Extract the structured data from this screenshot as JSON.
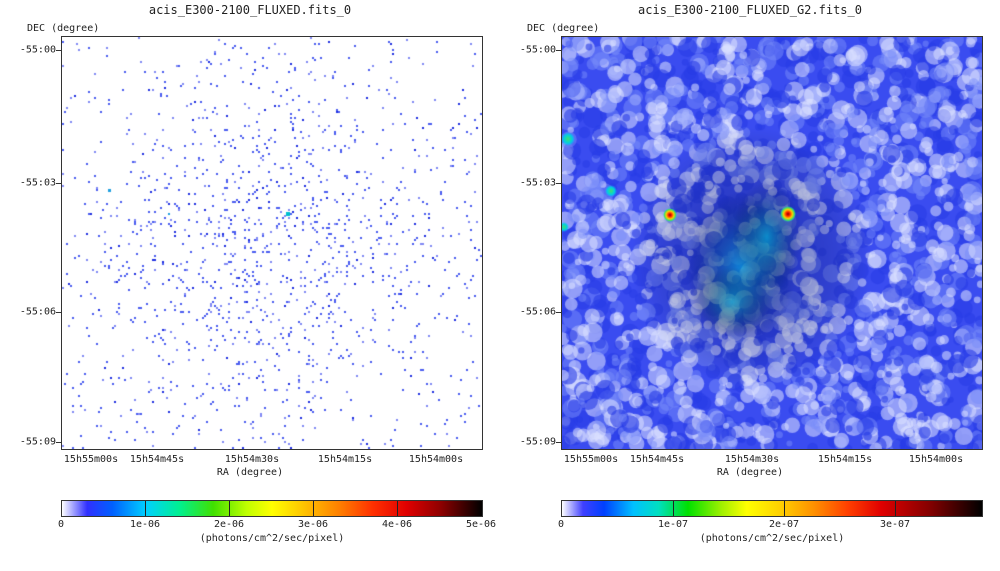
{
  "panels": [
    {
      "title": "acis_E300-2100_FLUXED.fits_0",
      "ylabel": "DEC (degree)",
      "xlabel": "RA (degree)",
      "yticks": [
        "-55:00",
        "-55:03",
        "-55:06",
        "-55:09"
      ],
      "xticks": [
        "15h55m00s",
        "15h54m45s",
        "15h54m30s",
        "15h54m15s",
        "15h54m00s"
      ],
      "colorbar_ticks": [
        "0",
        "1e-06",
        "2e-06",
        "3e-06",
        "4e-06",
        "5e-06"
      ],
      "colorbar_unit": "(photons/cm^2/sec/pixel)",
      "image_style": "sparse-photon-counts"
    },
    {
      "title": "acis_E300-2100_FLUXED_G2.fits_0",
      "ylabel": "DEC (degree)",
      "xlabel": "RA (degree)",
      "yticks": [
        "-55:00",
        "-55:03",
        "-55:06",
        "-55:09"
      ],
      "xticks": [
        "15h55m00s",
        "15h54m45s",
        "15h54m30s",
        "15h54m15s",
        "15h54m00s"
      ],
      "colorbar_ticks": [
        "0",
        "1e-07",
        "2e-07",
        "3e-07"
      ],
      "colorbar_unit": "(photons/cm^2/sec/pixel)",
      "image_style": "gaussian-smoothed"
    }
  ]
}
